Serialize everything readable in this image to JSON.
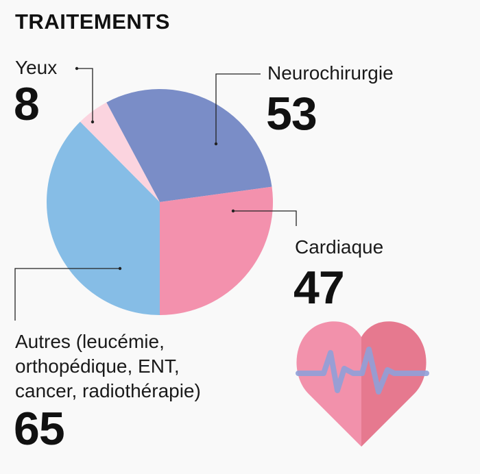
{
  "chart_data": {
    "type": "pie",
    "title": "TRAITEMENTS",
    "slices": [
      {
        "label": "Yeux",
        "value": 8,
        "color": "#fbd4df"
      },
      {
        "label": "Neurochirurgie",
        "value": 53,
        "color": "#7a8dc7"
      },
      {
        "label": "Cardiaque",
        "value": 47,
        "color": "#f391ad"
      },
      {
        "label": "Autres (leucémie, orthopédique, ENT, cancer, radiothérapie)",
        "value": 65,
        "color": "#86bde6"
      }
    ],
    "display_values": [
      "8",
      "53",
      "47",
      "65"
    ],
    "label_lines": [
      "Autres (leucémie,",
      "orthopédique, ENT,",
      "cancer, radiothérapie)"
    ]
  },
  "decoration": {
    "icon": "heart-pulse-icon",
    "heart_left": "#f291ab",
    "heart_right": "#e6798f",
    "pulse": "#8fa0d8"
  }
}
